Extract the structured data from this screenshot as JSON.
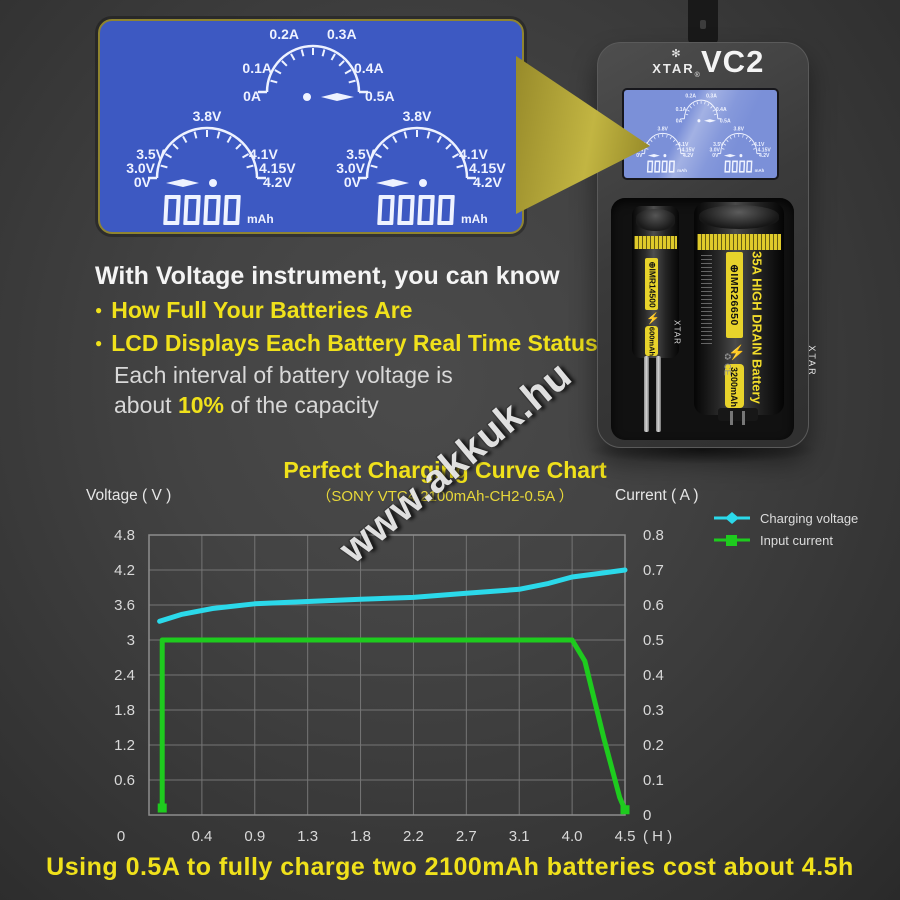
{
  "watermark": "www.akkuk.hu",
  "glyphs": {
    "bullet": "●",
    "bolt": "⚡",
    "polarity": "⊕",
    "recycle": "♻",
    "ce": "CE",
    "logo": "✻"
  },
  "lcd": {
    "readout": "0000",
    "unit": "mAh",
    "current_labels": [
      "0A",
      "0.1A",
      "0.2A",
      "0.3A",
      "0.4A",
      "0.5A"
    ],
    "voltage_labels": [
      "0V",
      "3.0V",
      "3.5V",
      "3.8V",
      "4.1V",
      "4.15V",
      "4.2V"
    ]
  },
  "charger": {
    "brand": "XTAR",
    "brand_mark": "®",
    "model": "VC2",
    "battery_left": {
      "model": "IMR14500",
      "capacity": "600mAh",
      "brand": "XTAR"
    },
    "battery_right": {
      "model": "IMR26650",
      "type": "35A HIGH DRAIN Battery",
      "capacity": "3200mAh",
      "brand": "XTAR"
    }
  },
  "info": {
    "heading": "With Voltage instrument, you can know",
    "bullets": [
      "How Full Your Batteries Are",
      "LCD Displays Each Battery Real Time Status"
    ],
    "note_line1": "Each interval of battery voltage is",
    "note_line2_prefix": "about ",
    "note_highlight": "10%",
    "note_line2_suffix": " of the capacity"
  },
  "chart_data": {
    "type": "line",
    "title": "Perfect Charging Curve Chart",
    "subtitle": "（SONY VTC4 2100mAh-CH2-0.5A ）",
    "left_axis_label": "Voltage ( V )",
    "right_axis_label": "Current ( A )",
    "x_axis_unit": "( H )",
    "x_ticks": [
      "0",
      "0.4",
      "0.9",
      "1.3",
      "1.8",
      "2.2",
      "2.7",
      "3.1",
      "4.0",
      "4.5"
    ],
    "left_ticks": [
      "4.8",
      "4.2",
      "3.6",
      "3",
      "2.4",
      "1.8",
      "1.2",
      "0.6"
    ],
    "right_ticks": [
      "0.8",
      "0.7",
      "0.6",
      "0.5",
      "0.4",
      "0.3",
      "0.2",
      "0.1",
      "0"
    ],
    "left_range": [
      0,
      4.8
    ],
    "right_range": [
      0,
      0.8
    ],
    "grid": true,
    "legend_position": "top-right",
    "series": [
      {
        "name": "Charging voltage",
        "axis": "left",
        "color": "#2bd9ea",
        "marker": "diamond",
        "points": [
          [
            0.08,
            3.32
          ],
          [
            0.25,
            3.44
          ],
          [
            0.5,
            3.54
          ],
          [
            0.9,
            3.62
          ],
          [
            1.3,
            3.66
          ],
          [
            1.8,
            3.7
          ],
          [
            2.2,
            3.73
          ],
          [
            2.7,
            3.8
          ],
          [
            3.1,
            3.87
          ],
          [
            3.6,
            3.97
          ],
          [
            4.0,
            4.08
          ],
          [
            4.3,
            4.15
          ],
          [
            4.5,
            4.2
          ]
        ]
      },
      {
        "name": "Input current",
        "axis": "right",
        "color": "#1ecb1e",
        "marker": "square",
        "points": [
          [
            0.1,
            0.02
          ],
          [
            0.1,
            0.5
          ],
          [
            4.0,
            0.5
          ],
          [
            4.12,
            0.44
          ],
          [
            4.3,
            0.22
          ],
          [
            4.45,
            0.05
          ],
          [
            4.5,
            0.015
          ]
        ]
      }
    ]
  },
  "caption": "Using 0.5A to fully charge two 2100mAh batteries cost about 4.5h",
  "colors": {
    "accent_yellow": "#f0e11b",
    "lcd_blue": "#3d59c2",
    "lcd_mini_blue": "#7b90d8",
    "callout_olive": "#a89a2e",
    "charging_voltage": "#2bd9ea",
    "input_current": "#1ecb1e",
    "grid": "#757575"
  }
}
